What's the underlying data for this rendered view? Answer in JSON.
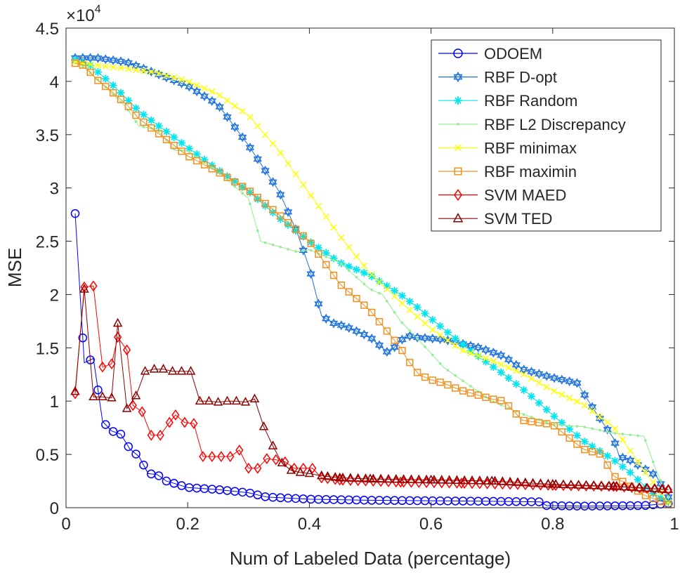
{
  "chart_data": {
    "type": "line",
    "title": "",
    "xlabel": "Num of Labeled Data (percentage)",
    "ylabel": "MSE",
    "exponent_label": "×10",
    "exponent_power": "4",
    "xlim": [
      0,
      1
    ],
    "ylim": [
      0,
      4.5
    ],
    "x_ticks": [
      0,
      0.2,
      0.4,
      0.6,
      0.8,
      1
    ],
    "x_tick_labels": [
      "0",
      "0.2",
      "0.4",
      "0.6",
      "0.8",
      "1"
    ],
    "y_ticks": [
      0,
      0.5,
      1,
      1.5,
      2,
      2.5,
      3,
      3.5,
      4,
      4.5
    ],
    "y_tick_labels": [
      "0",
      "0.5",
      "1",
      "1.5",
      "2",
      "2.5",
      "3",
      "3.5",
      "4",
      "4.5"
    ],
    "grid": false,
    "legend_position": "top-right",
    "series": [
      {
        "name": "ODOEM",
        "color": "#0000ff",
        "marker": "circle",
        "sample": "dense",
        "x": [
          0.015,
          0.03,
          0.045,
          0.06,
          0.075,
          0.09,
          0.105,
          0.12,
          0.135,
          0.15,
          0.165,
          0.2,
          0.25,
          0.3,
          0.33,
          0.4,
          0.5,
          0.6,
          0.7,
          0.78,
          0.79,
          0.85,
          0.95,
          0.99
        ],
        "y": [
          2.76,
          1.36,
          1.4,
          0.81,
          0.72,
          0.69,
          0.55,
          0.48,
          0.32,
          0.31,
          0.25,
          0.19,
          0.17,
          0.14,
          0.1,
          0.08,
          0.07,
          0.065,
          0.06,
          0.055,
          0.02,
          0.015,
          0.02,
          0.04
        ]
      },
      {
        "name": "RBF D-opt",
        "color": "#1a6fdf",
        "marker": "hexagram",
        "sample": "dense",
        "x": [
          0.015,
          0.05,
          0.1,
          0.15,
          0.2,
          0.25,
          0.3,
          0.35,
          0.38,
          0.4,
          0.42,
          0.44,
          0.46,
          0.5,
          0.53,
          0.56,
          0.57,
          0.62,
          0.68,
          0.72,
          0.75,
          0.8,
          0.84,
          0.87,
          0.9,
          0.91,
          0.92,
          0.97,
          0.99
        ],
        "y": [
          4.22,
          4.22,
          4.18,
          4.07,
          3.96,
          3.78,
          3.4,
          2.97,
          2.58,
          2.25,
          1.8,
          1.73,
          1.7,
          1.6,
          1.45,
          1.62,
          1.6,
          1.58,
          1.5,
          1.42,
          1.3,
          1.22,
          1.17,
          0.9,
          0.65,
          0.47,
          0.47,
          0.3,
          0.1
        ]
      },
      {
        "name": "RBF Random",
        "color": "#00e5ee",
        "marker": "asterisk",
        "sample": "dense",
        "x": [
          0.015,
          0.04,
          0.08,
          0.12,
          0.16,
          0.2,
          0.25,
          0.3,
          0.35,
          0.4,
          0.45,
          0.5,
          0.55,
          0.58,
          0.62,
          0.67,
          0.72,
          0.76,
          0.8,
          0.85,
          0.9,
          0.93,
          0.96,
          0.99
        ],
        "y": [
          4.2,
          4.15,
          3.95,
          3.72,
          3.55,
          3.38,
          3.17,
          2.97,
          2.72,
          2.5,
          2.3,
          2.18,
          2.0,
          1.87,
          1.68,
          1.45,
          1.25,
          1.07,
          0.87,
          0.63,
          0.45,
          0.32,
          0.15,
          0.05
        ]
      },
      {
        "name": "RBF L2 Discrepancy",
        "color": "#90ee90",
        "marker": "point",
        "sample": "dense",
        "x": [
          0.015,
          0.05,
          0.1,
          0.12,
          0.15,
          0.18,
          0.2,
          0.25,
          0.3,
          0.32,
          0.35,
          0.38,
          0.4,
          0.45,
          0.5,
          0.52,
          0.55,
          0.6,
          0.62,
          0.65,
          0.7,
          0.75,
          0.8,
          0.85,
          0.9,
          0.95,
          0.97,
          0.99
        ],
        "y": [
          4.2,
          4.03,
          3.75,
          3.58,
          3.55,
          3.35,
          3.35,
          3.15,
          2.9,
          2.5,
          2.45,
          2.4,
          2.42,
          2.3,
          2.05,
          2.0,
          1.75,
          1.45,
          1.32,
          1.2,
          1.0,
          0.88,
          0.78,
          0.76,
          0.7,
          0.67,
          0.35,
          0.1
        ]
      },
      {
        "name": "RBF minimax",
        "color": "#ffff00",
        "marker": "x",
        "sample": "dense",
        "x": [
          0.015,
          0.05,
          0.1,
          0.15,
          0.2,
          0.25,
          0.3,
          0.35,
          0.4,
          0.45,
          0.5,
          0.55,
          0.6,
          0.65,
          0.7,
          0.75,
          0.8,
          0.85,
          0.9,
          0.95,
          0.99
        ],
        "y": [
          4.18,
          4.15,
          4.12,
          4.08,
          4.0,
          3.88,
          3.68,
          3.35,
          2.95,
          2.55,
          2.2,
          1.93,
          1.68,
          1.48,
          1.38,
          1.26,
          1.1,
          0.97,
          0.76,
          0.35,
          0.05
        ]
      },
      {
        "name": "RBF maximin",
        "color": "#f28e1c",
        "marker": "square",
        "sample": "dense",
        "x": [
          0.015,
          0.03,
          0.05,
          0.07,
          0.1,
          0.12,
          0.15,
          0.2,
          0.25,
          0.3,
          0.35,
          0.4,
          0.45,
          0.5,
          0.55,
          0.56,
          0.58,
          0.6,
          0.62,
          0.65,
          0.7,
          0.72,
          0.75,
          0.8,
          0.85,
          0.88,
          0.9,
          0.95,
          0.99
        ],
        "y": [
          4.17,
          4.15,
          4.02,
          3.93,
          3.78,
          3.65,
          3.52,
          3.3,
          3.15,
          2.98,
          2.75,
          2.5,
          2.1,
          1.85,
          1.5,
          1.4,
          1.25,
          1.2,
          1.17,
          1.1,
          1.02,
          1.0,
          0.82,
          0.78,
          0.55,
          0.5,
          0.3,
          0.12,
          0.03
        ]
      },
      {
        "name": "SVM MAED",
        "color": "#ff0000",
        "marker": "diamond",
        "sample": "sparse",
        "x": [
          0.015,
          0.03,
          0.045,
          0.06,
          0.075,
          0.085,
          0.1,
          0.11,
          0.125,
          0.14,
          0.155,
          0.17,
          0.18,
          0.195,
          0.21,
          0.225,
          0.24,
          0.255,
          0.27,
          0.285,
          0.3,
          0.315,
          0.33,
          0.345,
          0.36,
          0.375,
          0.39,
          0.405,
          0.42,
          0.45,
          0.55,
          0.65,
          0.8,
          0.9,
          0.99
        ],
        "y": [
          1.07,
          2.07,
          2.08,
          1.32,
          1.35,
          1.6,
          1.48,
          0.96,
          0.9,
          0.68,
          0.68,
          0.8,
          0.87,
          0.8,
          0.79,
          0.48,
          0.48,
          0.48,
          0.48,
          0.54,
          0.37,
          0.37,
          0.46,
          0.45,
          0.43,
          0.37,
          0.37,
          0.37,
          0.28,
          0.26,
          0.24,
          0.23,
          0.21,
          0.2,
          0.17
        ]
      },
      {
        "name": "SVM TED",
        "color": "#8b0000",
        "marker": "triangle",
        "sample": "sparse",
        "x": [
          0.015,
          0.03,
          0.045,
          0.06,
          0.075,
          0.085,
          0.1,
          0.115,
          0.13,
          0.145,
          0.16,
          0.175,
          0.19,
          0.205,
          0.22,
          0.235,
          0.25,
          0.265,
          0.28,
          0.295,
          0.31,
          0.325,
          0.34,
          0.355,
          0.37,
          0.385,
          0.4,
          0.42,
          0.45,
          0.5,
          0.6,
          0.7,
          0.8,
          0.9,
          0.99
        ],
        "y": [
          1.09,
          2.05,
          1.04,
          1.04,
          1.03,
          1.73,
          0.93,
          1.05,
          1.28,
          1.3,
          1.3,
          1.28,
          1.28,
          1.28,
          1.0,
          1.0,
          0.99,
          1.0,
          1.0,
          0.99,
          1.02,
          0.76,
          0.58,
          0.42,
          0.35,
          0.33,
          0.32,
          0.3,
          0.28,
          0.27,
          0.26,
          0.25,
          0.22,
          0.2,
          0.17
        ]
      }
    ]
  }
}
